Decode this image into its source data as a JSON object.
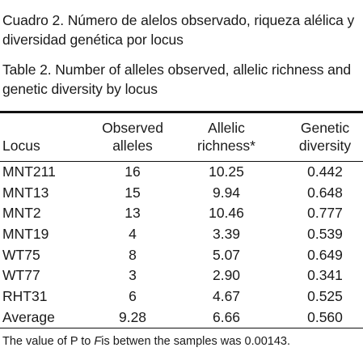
{
  "caption_es": [
    "Cuadro 2. Número de alelos observado, riqueza alélica y",
    "diversidad genética por locus"
  ],
  "caption_en": [
    "Table 2. Number of alleles observed, allelic richness and",
    "genetic diversity by locus"
  ],
  "headers": {
    "locus": "Locus",
    "observed": [
      "Observed",
      "alleles"
    ],
    "richness": [
      "Allelic",
      "richness*"
    ],
    "diversity": [
      "Genetic",
      "diversity"
    ]
  },
  "rows": [
    {
      "locus": "MNT211",
      "observed": "16",
      "richness": "10.25",
      "diversity": "0.442"
    },
    {
      "locus": "MNT13",
      "observed": "15",
      "richness": "9.94",
      "diversity": "0.648"
    },
    {
      "locus": "MNT2",
      "observed": "13",
      "richness": "10.46",
      "diversity": "0.777"
    },
    {
      "locus": "MNT19",
      "observed": "4",
      "richness": "3.39",
      "diversity": "0.539"
    },
    {
      "locus": "WT75",
      "observed": "8",
      "richness": "5.07",
      "diversity": "0.649"
    },
    {
      "locus": "WT77",
      "observed": "3",
      "richness": "2.90",
      "diversity": "0.341"
    },
    {
      "locus": "RHT31",
      "observed": "6",
      "richness": "4.67",
      "diversity": "0.525"
    },
    {
      "locus": "Average",
      "observed": "9.28",
      "richness": "6.66",
      "diversity": "0.560"
    }
  ],
  "footnote": {
    "before": "The value of P to ",
    "italic": "F",
    "after": "is betwen the samples was 0.00143."
  }
}
